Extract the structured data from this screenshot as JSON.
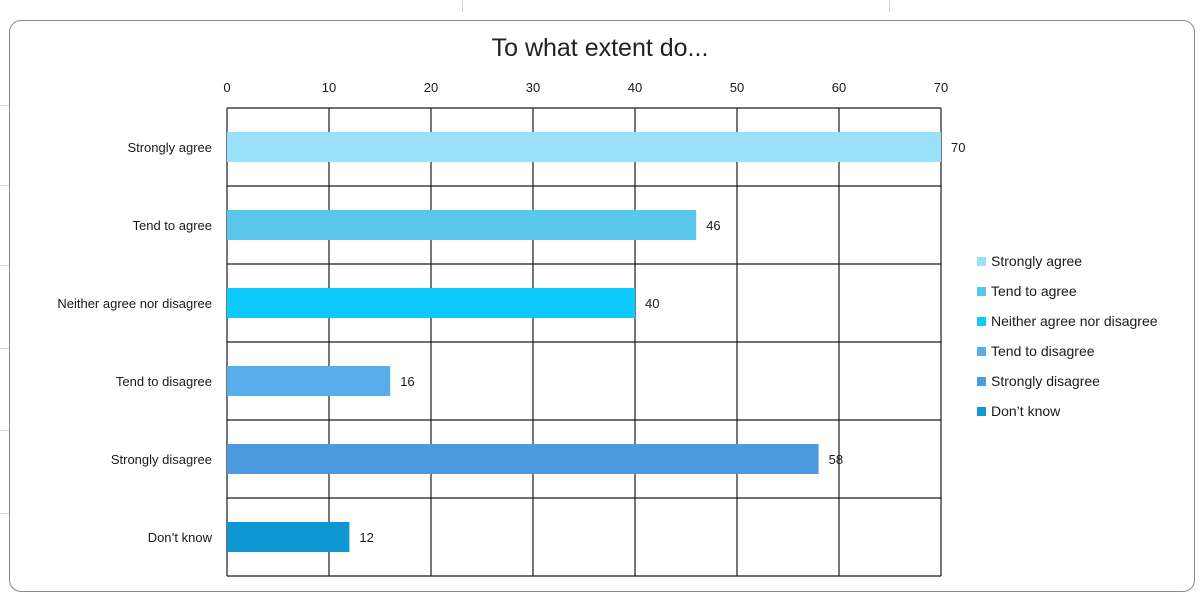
{
  "chart_data": {
    "type": "bar",
    "orientation": "horizontal",
    "title": "To what extent do...",
    "categories": [
      "Strongly agree",
      "Tend to agree",
      "Neither agree nor disagree",
      "Tend to disagree",
      "Strongly disagree",
      "Don’t know"
    ],
    "values": [
      70,
      46,
      40,
      16,
      58,
      12
    ],
    "colors": [
      "#99e1fb",
      "#5bc6ec",
      "#0ec9fb",
      "#58aeed",
      "#4b9be0",
      "#0e98d3"
    ],
    "xlim": [
      0,
      70
    ],
    "xticks": [
      0,
      10,
      20,
      30,
      40,
      50,
      60,
      70
    ],
    "tick_position": "top",
    "grid": true,
    "data_labels": true,
    "legend": {
      "position": "right",
      "entries": [
        "Strongly agree",
        "Tend to agree",
        "Neither agree nor disagree",
        "Tend to disagree",
        "Strongly disagree",
        "Don’t know"
      ]
    }
  }
}
